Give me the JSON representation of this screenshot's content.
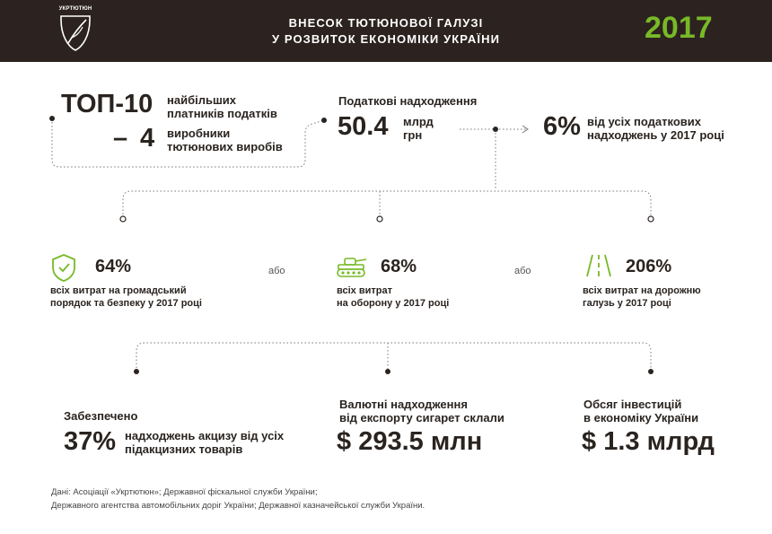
{
  "header": {
    "logo_text": "УКРТЮТЮН",
    "title_line1": "ВНЕСОК ТЮТЮНОВОЇ ГАЛУЗІ",
    "title_line2": "У РОЗВИТОК ЕКОНОМІКИ УКРАЇНИ",
    "year": "2017"
  },
  "top10": {
    "big": "ТОП-10",
    "text_line1": "найбільших",
    "text_line2": "платників податків",
    "dash": "–",
    "number": "4",
    "sub_line1": "виробники",
    "sub_line2": "тютюнових виробів"
  },
  "tax": {
    "label": "Податкові надходження",
    "value": "50.4",
    "unit_line1": "млрд",
    "unit_line2": "грн"
  },
  "share": {
    "value": "6%",
    "text_line1": "від усіх податкових",
    "text_line2": "надходжень у 2017 році"
  },
  "compare": {
    "or_label": "або",
    "items": [
      {
        "icon": "shield-check-icon",
        "value": "64%",
        "line1": "всіх витрат на громадський",
        "line2": "порядок та безпеку у 2017 році"
      },
      {
        "icon": "tank-icon",
        "value": "68%",
        "line1": "всіх витрат",
        "line2": "на оборону у 2017 році"
      },
      {
        "icon": "road-icon",
        "value": "206%",
        "line1": "всіх витрат на дорожню",
        "line2": "галузь у 2017 році"
      }
    ]
  },
  "excise": {
    "label": "Забезпечено",
    "value": "37%",
    "text_line1": "надходжень акцизу від усіх",
    "text_line2": "підакцизних товарів"
  },
  "export": {
    "label_line1": "Валютні надходження",
    "label_line2": "від експорту сигарет склали",
    "currency": "$",
    "value": "293.5 млн"
  },
  "invest": {
    "label_line1": "Обсяг інвестицій",
    "label_line2": "в економіку України",
    "currency": "$",
    "value": "1.3 млрд"
  },
  "footer": {
    "line1": "Дані: Асоціації «Укртютюн»; Державної фіскальної служби України;",
    "line2": "Державного агентства автомобільних доріг України; Державної казначейської служби України."
  },
  "colors": {
    "accent_green": "#78b928",
    "header_bg": "#2c221f",
    "text_dark": "#2a2420"
  }
}
